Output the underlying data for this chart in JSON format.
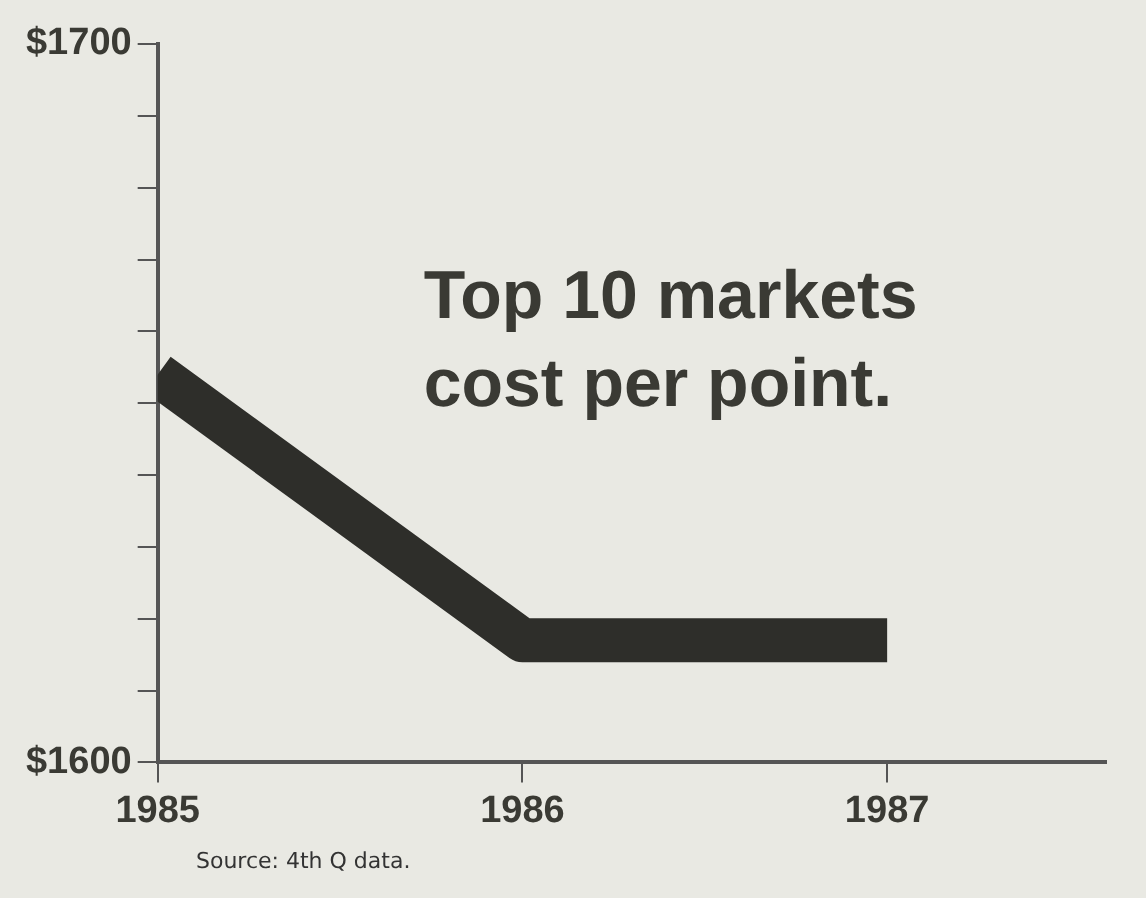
{
  "chart_data": {
    "type": "line",
    "title": "Top 10 markets cost per point.",
    "x": [
      1985,
      1986,
      1987
    ],
    "series": [
      {
        "color": "#2e2e2a",
        "values": [
          1654,
          1617,
          1617
        ]
      }
    ],
    "xlim": [
      1985,
      1987.6
    ],
    "xticks": [
      1985,
      1986,
      1987
    ],
    "ylim": [
      1600,
      1700
    ],
    "yticks": [
      {
        "value": 1600,
        "label": "$1600"
      },
      {
        "value": 1610,
        "label": null
      },
      {
        "value": 1620,
        "label": null
      },
      {
        "value": 1630,
        "label": null
      },
      {
        "value": 1640,
        "label": null
      },
      {
        "value": 1650,
        "label": null
      },
      {
        "value": 1660,
        "label": null
      },
      {
        "value": 1670,
        "label": null
      },
      {
        "value": 1680,
        "label": null
      },
      {
        "value": 1690,
        "label": null
      },
      {
        "value": 1700,
        "label": "$1700"
      }
    ],
    "annotations": [
      "Source: 4th Q data."
    ],
    "grid": false,
    "legend": false,
    "marker": "none",
    "line_style": "solid"
  }
}
